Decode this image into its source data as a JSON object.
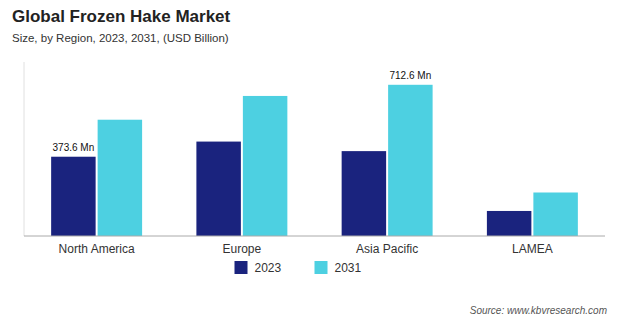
{
  "chart_data": {
    "type": "bar",
    "title": "Global Frozen Hake Market",
    "subtitle": "Size, by Region, 2023, 2031, (USD Billion)",
    "source": "Source: www.kbvresearch.com",
    "categories": [
      "North America",
      "Europe",
      "Asia Pacific",
      "LAMEA"
    ],
    "series": [
      {
        "name": "2023",
        "color": "#1a237e",
        "values": [
          373.6,
          445,
          400,
          118
        ],
        "value_labels": [
          "373.6 Mn",
          null,
          null,
          null
        ]
      },
      {
        "name": "2031",
        "color": "#4dd0e1",
        "values": [
          548,
          660,
          712.6,
          205
        ],
        "value_labels": [
          null,
          null,
          "712.6 Mn",
          null
        ]
      }
    ],
    "ylim": [
      0,
      820
    ],
    "grid": false,
    "legend": "bottom",
    "tick_labels": "x"
  }
}
